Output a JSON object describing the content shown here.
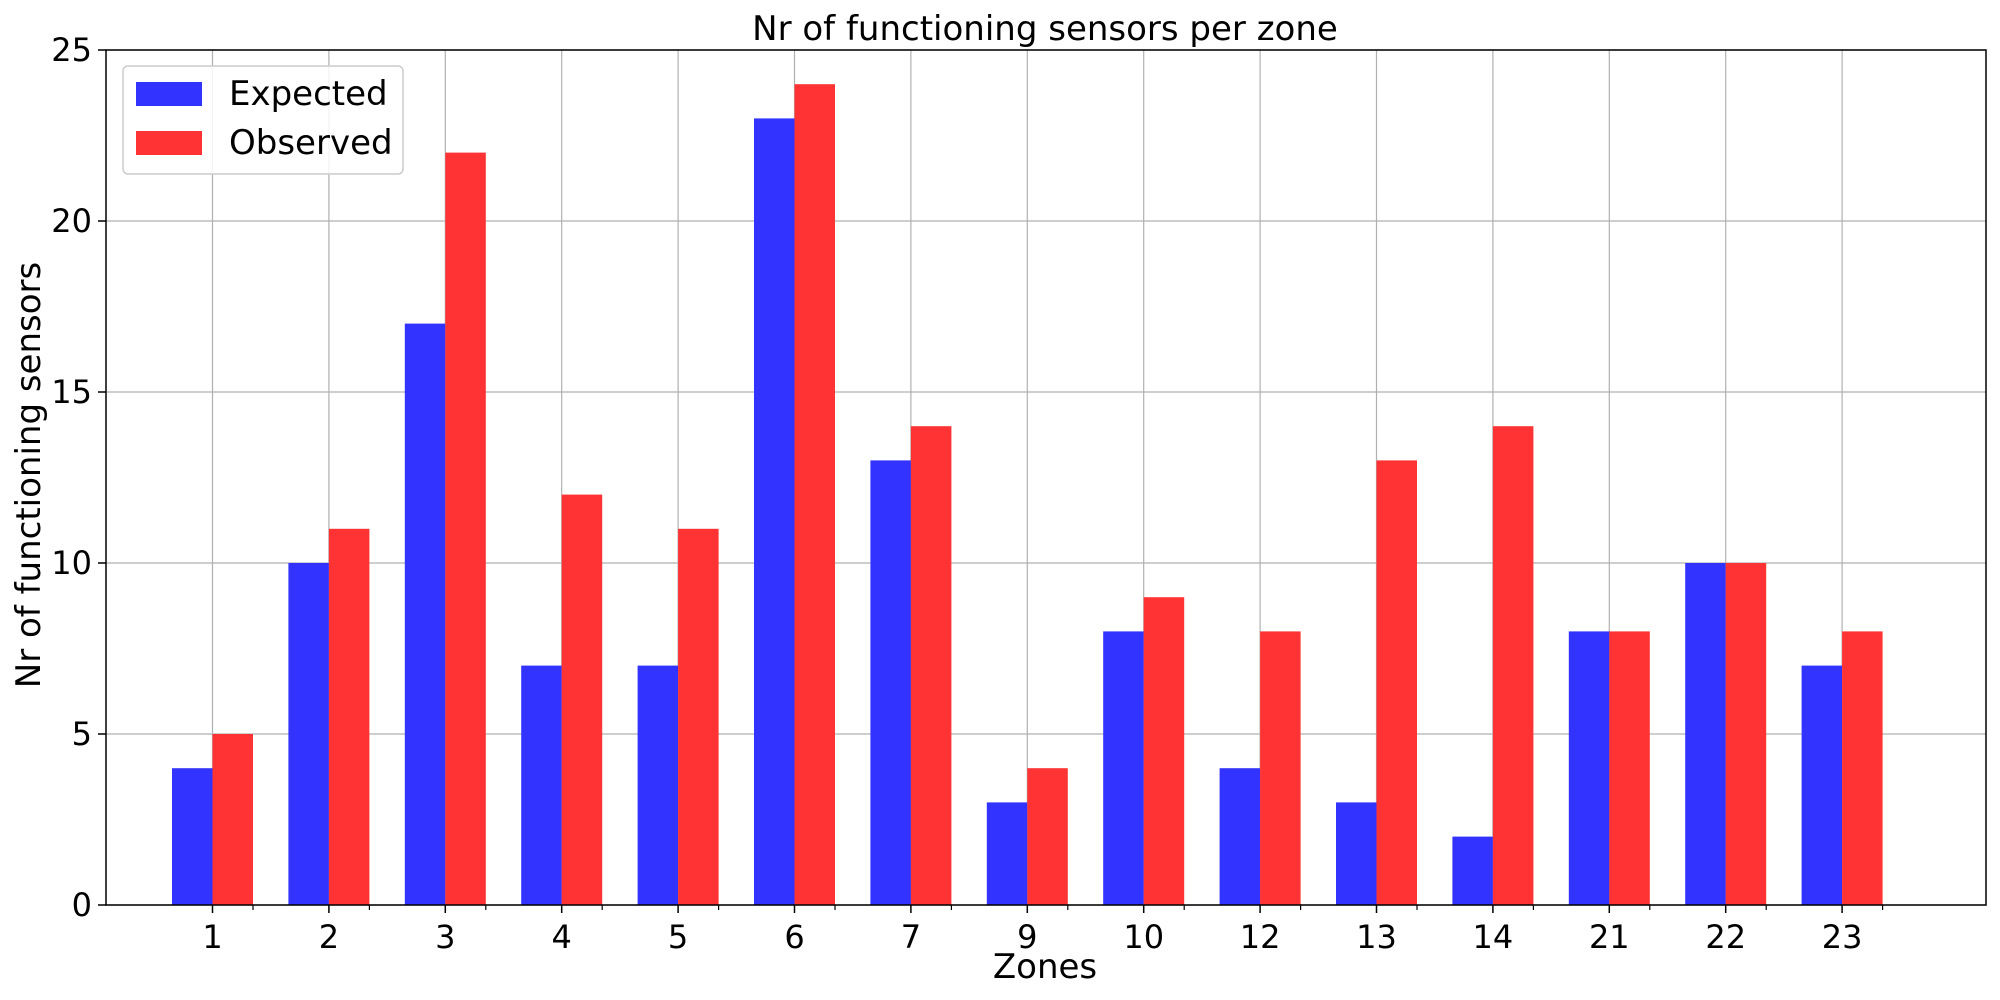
{
  "chart_data": {
    "type": "bar",
    "title": "Nr of functioning sensors per zone",
    "xlabel": "Zones",
    "ylabel": "Nr of functioning sensors",
    "categories": [
      "1",
      "2",
      "3",
      "4",
      "5",
      "6",
      "7",
      "9",
      "10",
      "12",
      "13",
      "14",
      "21",
      "22",
      "23"
    ],
    "series": [
      {
        "name": "Expected",
        "color": "#3333ff",
        "values": [
          4,
          10,
          17,
          7,
          7,
          23,
          13,
          3,
          8,
          4,
          3,
          2,
          8,
          10,
          7
        ]
      },
      {
        "name": "Observed",
        "color": "#ff3333",
        "values": [
          5,
          11,
          22,
          12,
          11,
          24,
          14,
          4,
          9,
          8,
          13,
          14,
          8,
          10,
          8
        ]
      }
    ],
    "ylim": [
      0,
      25
    ],
    "yticks": [
      0,
      5,
      10,
      15,
      20,
      25
    ],
    "grid": true,
    "legend_position": "top-left"
  }
}
